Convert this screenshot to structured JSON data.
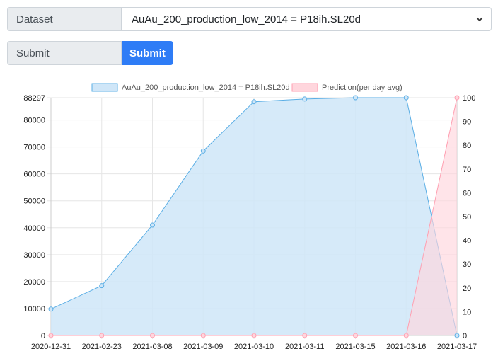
{
  "form": {
    "dataset_label": "Dataset",
    "dataset_value": "AuAu_200_production_low_2014 = P18ih.SL20d",
    "submit_label": "Submit",
    "submit_button": "Submit"
  },
  "colors": {
    "primary": "#2e7cf6",
    "series1_fill": "#cfe6f8",
    "series1_line": "#5aaee5",
    "series2_fill": "#ffd6dd",
    "series2_line": "#ff9fb1"
  },
  "chart_data": {
    "type": "area",
    "categories": [
      "2020-12-31",
      "2021-02-23",
      "2021-03-08",
      "2021-03-09",
      "2021-03-10",
      "2021-03-11",
      "2021-03-15",
      "2021-03-16",
      "2021-03-17"
    ],
    "series": [
      {
        "name": "AuAu_200_production_low_2014 = P18ih.SL20d",
        "axis": "left",
        "values": [
          9800,
          18500,
          41000,
          68500,
          86800,
          87800,
          88297,
          88297,
          0
        ]
      },
      {
        "name": "Prediction(per day avg)",
        "axis": "right",
        "values": [
          0,
          0,
          0,
          0,
          0,
          0,
          0,
          0,
          100
        ]
      }
    ],
    "y_left": {
      "min": 0,
      "max": 88297,
      "ticks": [
        "0",
        "10000",
        "20000",
        "30000",
        "40000",
        "50000",
        "60000",
        "70000",
        "80000",
        "88297"
      ]
    },
    "y_right": {
      "min": 0,
      "max": 100,
      "ticks": [
        "0",
        "10",
        "20",
        "30",
        "40",
        "50",
        "60",
        "70",
        "80",
        "90",
        "100"
      ]
    },
    "legend_position": "top",
    "grid": true
  }
}
